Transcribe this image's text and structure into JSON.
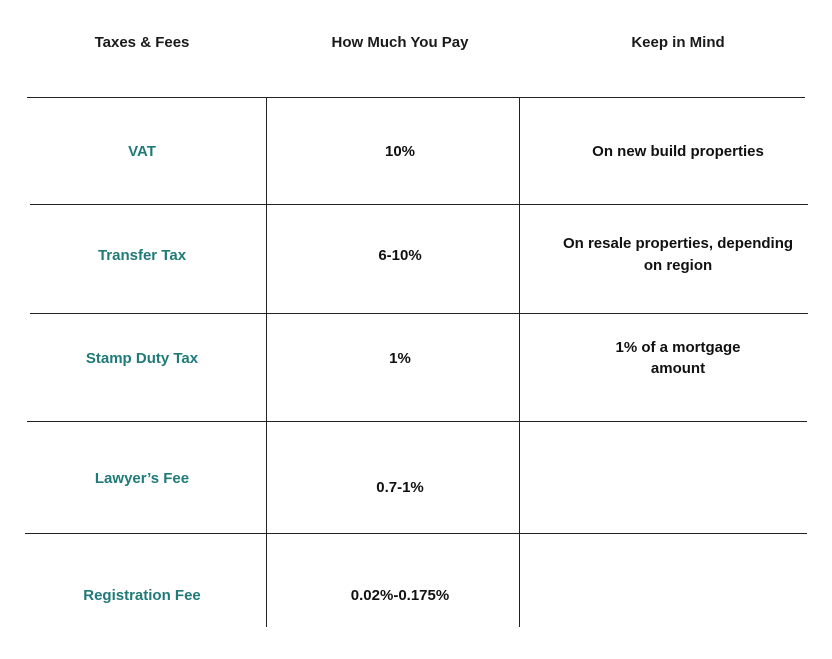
{
  "headers": {
    "col1": "Taxes & Fees",
    "col2": "How Much You Pay",
    "col3": "Keep in Mind"
  },
  "rows": [
    {
      "name": "VAT",
      "pay": "10%",
      "note": "On new build properties"
    },
    {
      "name": "Transfer Tax",
      "pay": "6-10%",
      "note_line1": "On resale properties, depending",
      "note_line2": "on region"
    },
    {
      "name": "Stamp Duty Tax",
      "pay": "1%",
      "note_line1": "1% of a mortgage",
      "note_line2": "amount"
    },
    {
      "name": "Lawyer’s Fee",
      "pay": "0.7-1%",
      "note": ""
    },
    {
      "name": "Registration Fee",
      "pay": "0.02%-0.175%",
      "note": ""
    }
  ],
  "colors": {
    "label_teal": "#1f7a78",
    "text": "#111111",
    "lines": "#222222"
  }
}
